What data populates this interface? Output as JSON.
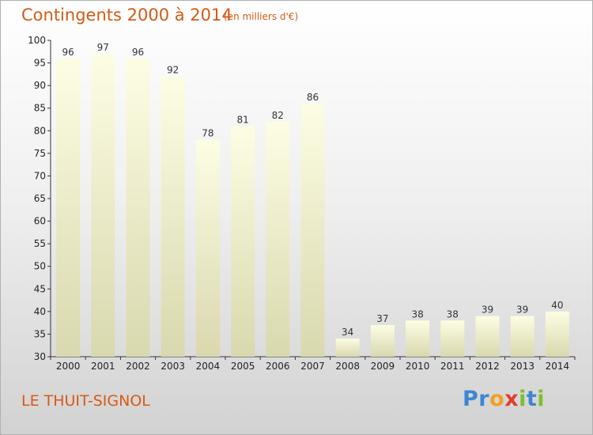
{
  "title": "Contingents 2000 à 2014",
  "subtitle": "(en milliers d'€)",
  "place": "LE THUIT-SIGNOL",
  "brand": {
    "letters": [
      "P",
      "r",
      "o",
      "x",
      "i",
      "t",
      "i"
    ],
    "colors": [
      "#3e86d4",
      "#3e86d4",
      "#f0a020",
      "#e23c32",
      "#7cbf2e",
      "#3e86d4",
      "#7cbf2e"
    ]
  },
  "colors": {
    "title": "#d65a14",
    "bar_light": "#fdfde4",
    "bar_dark": "#d9d8ae"
  },
  "chart_data": {
    "type": "bar",
    "title": "Contingents 2000 à 2014",
    "subtitle": "(en milliers d'€)",
    "xlabel": "",
    "ylabel": "",
    "categories": [
      "2000",
      "2001",
      "2002",
      "2003",
      "2004",
      "2005",
      "2006",
      "2007",
      "2008",
      "2009",
      "2010",
      "2011",
      "2012",
      "2013",
      "2014"
    ],
    "values": [
      96,
      97,
      96,
      92,
      78,
      81,
      82,
      86,
      34,
      37,
      38,
      38,
      39,
      39,
      40
    ],
    "data_labels": [
      "96",
      "97",
      "96",
      "92",
      "78",
      "81",
      "82",
      "86",
      "34",
      "37",
      "38",
      "38",
      "39",
      "39",
      "40"
    ],
    "ylim": [
      30,
      100
    ],
    "yticks": [
      30,
      35,
      40,
      45,
      50,
      55,
      60,
      65,
      70,
      75,
      80,
      85,
      90,
      95,
      100
    ],
    "grid": false,
    "legend": "none"
  }
}
